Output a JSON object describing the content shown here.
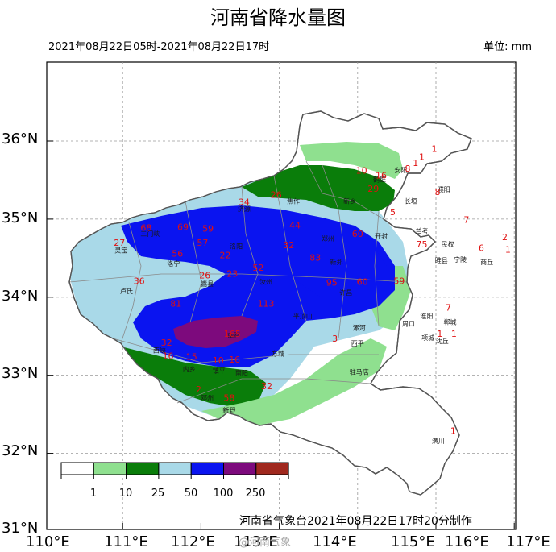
{
  "title": "河南省降水量图",
  "period": "2021年08月22日05时-2021年08月22日17时",
  "unit": "单位: mm",
  "footer": "河南省气象台2021年08月22日17时20分制作",
  "watermark": "@河南气象",
  "lat_labels": [
    "36°N",
    "35°N",
    "34°N",
    "33°N",
    "32°N",
    "31°N"
  ],
  "lon_labels": [
    "110°E",
    "111°E",
    "112°E",
    "113°E",
    "114°E",
    "115°E",
    "116°E",
    "117°E"
  ],
  "legend": {
    "breaks": [
      "1",
      "10",
      "25",
      "50",
      "100",
      "250"
    ],
    "colors": [
      "#ffffff",
      "#8fe08f",
      "#0a7d0a",
      "#a9d9e8",
      "#0a14f0",
      "#7d0a7d",
      "#a0281e"
    ]
  },
  "colors": {
    "province_fill": "#ffffff",
    "border": "#555555",
    "grid": "#9a9a9a",
    "station_value": "#e01010"
  },
  "station_values": [
    {
      "v": "1",
      "lon": 114.98,
      "lat": 35.86
    },
    {
      "v": "1",
      "lon": 114.82,
      "lat": 35.76
    },
    {
      "v": "1",
      "lon": 114.74,
      "lat": 35.68
    },
    {
      "v": "8",
      "lon": 114.64,
      "lat": 35.61
    },
    {
      "v": "10",
      "lon": 114.05,
      "lat": 35.58
    },
    {
      "v": "16",
      "lon": 114.3,
      "lat": 35.52
    },
    {
      "v": "29",
      "lon": 114.2,
      "lat": 35.35
    },
    {
      "v": "8",
      "lon": 115.02,
      "lat": 35.31
    },
    {
      "v": "26",
      "lon": 112.96,
      "lat": 35.27
    },
    {
      "v": "34",
      "lon": 112.55,
      "lat": 35.18
    },
    {
      "v": "5",
      "lon": 114.45,
      "lat": 35.05
    },
    {
      "v": "7",
      "lon": 115.39,
      "lat": 34.95
    },
    {
      "v": "68",
      "lon": 111.3,
      "lat": 34.85
    },
    {
      "v": "69",
      "lon": 111.77,
      "lat": 34.86
    },
    {
      "v": "59",
      "lon": 112.09,
      "lat": 34.84
    },
    {
      "v": "44",
      "lon": 113.2,
      "lat": 34.88
    },
    {
      "v": "60",
      "lon": 114.0,
      "lat": 34.77
    },
    {
      "v": "2",
      "lon": 115.88,
      "lat": 34.73
    },
    {
      "v": "27",
      "lon": 110.96,
      "lat": 34.66
    },
    {
      "v": "57",
      "lon": 112.02,
      "lat": 34.66
    },
    {
      "v": "32",
      "lon": 113.12,
      "lat": 34.63
    },
    {
      "v": "75",
      "lon": 114.82,
      "lat": 34.64
    },
    {
      "v": "6",
      "lon": 115.58,
      "lat": 34.59
    },
    {
      "v": "1",
      "lon": 115.92,
      "lat": 34.57
    },
    {
      "v": "56",
      "lon": 111.7,
      "lat": 34.52
    },
    {
      "v": "22",
      "lon": 112.31,
      "lat": 34.5
    },
    {
      "v": "83",
      "lon": 113.46,
      "lat": 34.47
    },
    {
      "v": "52",
      "lon": 112.73,
      "lat": 34.34
    },
    {
      "v": "36",
      "lon": 111.21,
      "lat": 34.17
    },
    {
      "v": "26",
      "lon": 112.05,
      "lat": 34.24
    },
    {
      "v": "23",
      "lon": 112.4,
      "lat": 34.26
    },
    {
      "v": "95",
      "lon": 113.67,
      "lat": 34.15
    },
    {
      "v": "60",
      "lon": 114.06,
      "lat": 34.16
    },
    {
      "v": "59",
      "lon": 114.53,
      "lat": 34.17
    },
    {
      "v": "81",
      "lon": 111.68,
      "lat": 33.88
    },
    {
      "v": "113",
      "lon": 112.83,
      "lat": 33.88
    },
    {
      "v": "7",
      "lon": 115.16,
      "lat": 33.83
    },
    {
      "v": "32",
      "lon": 111.56,
      "lat": 33.38
    },
    {
      "v": "16",
      "lon": 111.58,
      "lat": 33.21
    },
    {
      "v": "165",
      "lon": 112.4,
      "lat": 33.49
    },
    {
      "v": "15",
      "lon": 111.88,
      "lat": 33.2
    },
    {
      "v": "10",
      "lon": 112.22,
      "lat": 33.15
    },
    {
      "v": "16",
      "lon": 112.43,
      "lat": 33.16
    },
    {
      "v": "3",
      "lon": 113.71,
      "lat": 33.43
    },
    {
      "v": "1",
      "lon": 115.05,
      "lat": 33.49
    },
    {
      "v": "1",
      "lon": 115.23,
      "lat": 33.49
    },
    {
      "v": "2",
      "lon": 111.97,
      "lat": 32.78
    },
    {
      "v": "58",
      "lon": 112.36,
      "lat": 32.67
    },
    {
      "v": "32",
      "lon": 112.84,
      "lat": 32.82
    },
    {
      "v": "1",
      "lon": 115.22,
      "lat": 32.25
    }
  ],
  "station_names": [
    {
      "n": "安阳",
      "lon": 114.55,
      "lat": 35.6
    },
    {
      "n": "鹤壁",
      "lon": 114.28,
      "lat": 35.48
    },
    {
      "n": "濮阳",
      "lon": 115.1,
      "lat": 35.35
    },
    {
      "n": "新乡",
      "lon": 113.9,
      "lat": 35.2
    },
    {
      "n": "焦作",
      "lon": 113.18,
      "lat": 35.2
    },
    {
      "n": "济源",
      "lon": 112.55,
      "lat": 35.1
    },
    {
      "n": "长垣",
      "lon": 114.68,
      "lat": 35.2
    },
    {
      "n": "灵宝",
      "lon": 110.98,
      "lat": 34.57
    },
    {
      "n": "三门峡",
      "lon": 111.35,
      "lat": 34.78
    },
    {
      "n": "洛宁",
      "lon": 111.65,
      "lat": 34.4
    },
    {
      "n": "洛阳",
      "lon": 112.45,
      "lat": 34.62
    },
    {
      "n": "郑州",
      "lon": 113.62,
      "lat": 34.72
    },
    {
      "n": "开封",
      "lon": 114.3,
      "lat": 34.75
    },
    {
      "n": "兰考",
      "lon": 114.82,
      "lat": 34.82
    },
    {
      "n": "民权",
      "lon": 115.15,
      "lat": 34.65
    },
    {
      "n": "商丘",
      "lon": 115.65,
      "lat": 34.42
    },
    {
      "n": "宁陵",
      "lon": 115.31,
      "lat": 34.45
    },
    {
      "n": "睢县",
      "lon": 115.07,
      "lat": 34.44
    },
    {
      "n": "新郑",
      "lon": 113.73,
      "lat": 34.42
    },
    {
      "n": "许昌",
      "lon": 113.85,
      "lat": 34.03
    },
    {
      "n": "卢氏",
      "lon": 111.05,
      "lat": 34.05
    },
    {
      "n": "嵩县",
      "lon": 112.08,
      "lat": 34.14
    },
    {
      "n": "汝州",
      "lon": 112.83,
      "lat": 34.17
    },
    {
      "n": "平顶山",
      "lon": 113.3,
      "lat": 33.73
    },
    {
      "n": "漯河",
      "lon": 114.02,
      "lat": 33.58
    },
    {
      "n": "周口",
      "lon": 114.65,
      "lat": 33.63
    },
    {
      "n": "淮阳",
      "lon": 114.88,
      "lat": 33.73
    },
    {
      "n": "郸城",
      "lon": 115.18,
      "lat": 33.65
    },
    {
      "n": "南召",
      "lon": 112.42,
      "lat": 33.48
    },
    {
      "n": "方城",
      "lon": 112.98,
      "lat": 33.25
    },
    {
      "n": "西峡",
      "lon": 111.47,
      "lat": 33.29
    },
    {
      "n": "内乡",
      "lon": 111.85,
      "lat": 33.05
    },
    {
      "n": "镇平",
      "lon": 112.23,
      "lat": 33.03
    },
    {
      "n": "南阳",
      "lon": 112.52,
      "lat": 33.0
    },
    {
      "n": "驻马店",
      "lon": 114.02,
      "lat": 33.01
    },
    {
      "n": "西平",
      "lon": 114.0,
      "lat": 33.38
    },
    {
      "n": "项城",
      "lon": 114.9,
      "lat": 33.45
    },
    {
      "n": "沈丘",
      "lon": 115.08,
      "lat": 33.41
    },
    {
      "n": "邓州",
      "lon": 112.08,
      "lat": 32.68
    },
    {
      "n": "新野",
      "lon": 112.36,
      "lat": 32.52
    },
    {
      "n": "潢川",
      "lon": 115.03,
      "lat": 32.13
    }
  ]
}
